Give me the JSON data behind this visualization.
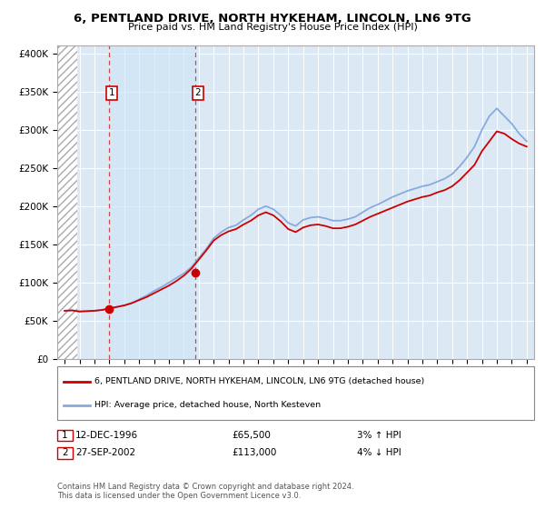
{
  "title": "6, PENTLAND DRIVE, NORTH HYKEHAM, LINCOLN, LN6 9TG",
  "subtitle": "Price paid vs. HM Land Registry's House Price Index (HPI)",
  "legend_line1": "6, PENTLAND DRIVE, NORTH HYKEHAM, LINCOLN, LN6 9TG (detached house)",
  "legend_line2": "HPI: Average price, detached house, North Kesteven",
  "footnote": "Contains HM Land Registry data © Crown copyright and database right 2024.\nThis data is licensed under the Open Government Licence v3.0.",
  "transaction1": {
    "year": 1996.95,
    "price": 65500,
    "label": "1"
  },
  "transaction2": {
    "year": 2002.74,
    "price": 113000,
    "label": "2"
  },
  "price_color": "#cc0000",
  "hpi_color": "#88aadd",
  "background_color": "#dce9f5",
  "shade_color": "#cce0f0",
  "ylim": [
    0,
    410000
  ],
  "xlim": [
    1993.5,
    2025.5
  ],
  "hpi_years": [
    1994,
    1994.5,
    1995,
    1995.5,
    1996,
    1996.5,
    1997,
    1997.5,
    1998,
    1998.5,
    1999,
    1999.5,
    2000,
    2000.5,
    2001,
    2001.5,
    2002,
    2002.5,
    2003,
    2003.5,
    2004,
    2004.5,
    2005,
    2005.5,
    2006,
    2006.5,
    2007,
    2007.5,
    2008,
    2008.5,
    2009,
    2009.5,
    2010,
    2010.5,
    2011,
    2011.5,
    2012,
    2012.5,
    2013,
    2013.5,
    2014,
    2014.5,
    2015,
    2015.5,
    2016,
    2016.5,
    2017,
    2017.5,
    2018,
    2018.5,
    2019,
    2019.5,
    2020,
    2020.5,
    2021,
    2021.5,
    2022,
    2022.5,
    2023,
    2023.5,
    2024,
    2024.5,
    2025
  ],
  "hpi_vals": [
    63000,
    63500,
    62000,
    62500,
    63000,
    64000,
    66000,
    68000,
    70000,
    73000,
    78000,
    83000,
    89000,
    94000,
    100000,
    106000,
    112000,
    120000,
    132000,
    144000,
    158000,
    166000,
    172000,
    175000,
    182000,
    188000,
    196000,
    200000,
    196000,
    188000,
    178000,
    174000,
    182000,
    185000,
    186000,
    184000,
    181000,
    181000,
    183000,
    186000,
    192000,
    198000,
    202000,
    207000,
    212000,
    216000,
    220000,
    223000,
    226000,
    228000,
    232000,
    236000,
    242000,
    252000,
    264000,
    278000,
    300000,
    318000,
    328000,
    318000,
    308000,
    295000,
    285000
  ],
  "price_years": [
    1994,
    1994.5,
    1995,
    1995.5,
    1996,
    1996.5,
    1997,
    1997.5,
    1998,
    1998.5,
    1999,
    1999.5,
    2000,
    2000.5,
    2001,
    2001.5,
    2002,
    2002.5,
    2003,
    2003.5,
    2004,
    2004.5,
    2005,
    2005.5,
    2006,
    2006.5,
    2007,
    2007.5,
    2008,
    2008.5,
    2009,
    2009.5,
    2010,
    2010.5,
    2011,
    2011.5,
    2012,
    2012.5,
    2013,
    2013.5,
    2014,
    2014.5,
    2015,
    2015.5,
    2016,
    2016.5,
    2017,
    2017.5,
    2018,
    2018.5,
    2019,
    2019.5,
    2020,
    2020.5,
    2021,
    2021.5,
    2022,
    2022.5,
    2023,
    2023.5,
    2024,
    2024.5,
    2025
  ],
  "price_vals": [
    63000,
    63500,
    62000,
    62500,
    63000,
    64000,
    66000,
    68000,
    70000,
    73000,
    77000,
    81000,
    86000,
    91000,
    96000,
    102000,
    109000,
    118000,
    130000,
    142000,
    155000,
    162000,
    167000,
    170000,
    176000,
    181000,
    188000,
    192000,
    188000,
    180000,
    170000,
    166000,
    172000,
    175000,
    176000,
    174000,
    171000,
    171000,
    173000,
    176000,
    181000,
    186000,
    190000,
    194000,
    198000,
    202000,
    206000,
    209000,
    212000,
    214000,
    218000,
    221000,
    226000,
    234000,
    244000,
    254000,
    272000,
    285000,
    298000,
    295000,
    288000,
    282000,
    278000
  ]
}
